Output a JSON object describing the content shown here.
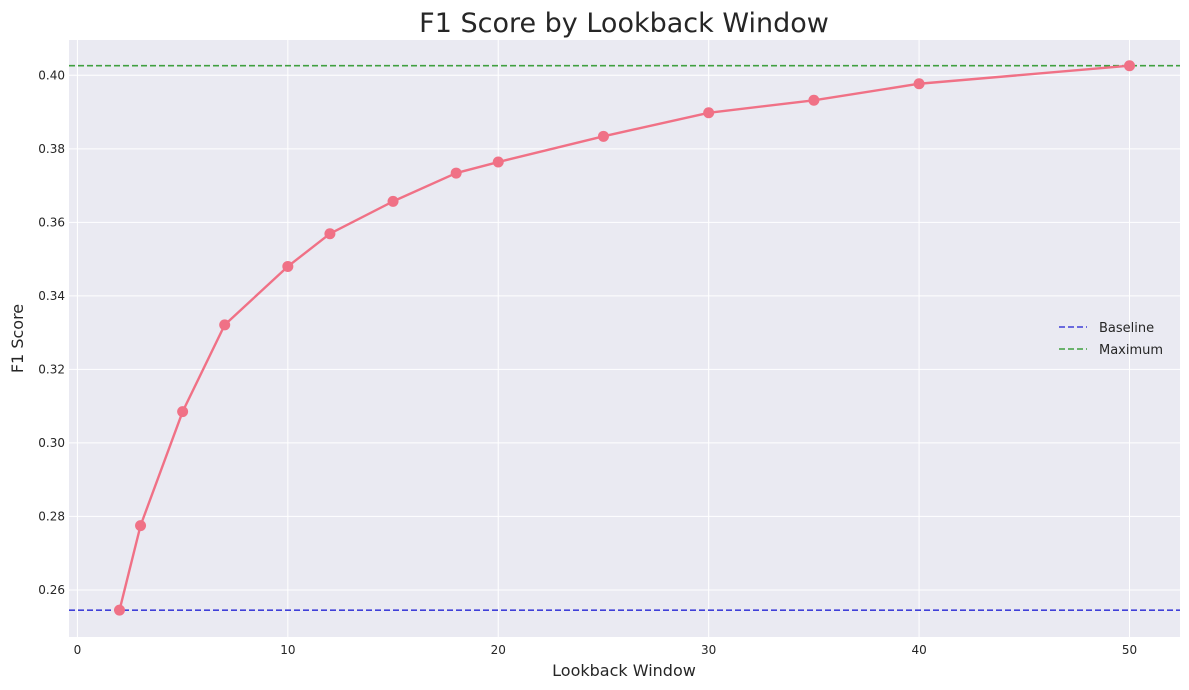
{
  "chart_data": {
    "type": "line",
    "title": "F1 Score by Lookback Window",
    "xlabel": "Lookback Window",
    "ylabel": "F1 Score",
    "xlim": [
      -0.4,
      52.4
    ],
    "ylim": [
      0.2472,
      0.4096
    ],
    "xticks": [
      0,
      10,
      20,
      30,
      40,
      50
    ],
    "yticks": [
      0.26,
      0.28,
      0.3,
      0.32,
      0.34,
      0.36,
      0.38,
      0.4
    ],
    "grid": true,
    "legend_position": "center-right",
    "series": [
      {
        "color": "#f07186",
        "x": [
          2,
          3,
          5,
          7,
          10,
          12,
          15,
          18,
          20,
          25,
          30,
          35,
          40,
          50
        ],
        "y": [
          0.2545,
          0.2775,
          0.3085,
          0.3321,
          0.348,
          0.3569,
          0.3657,
          0.3734,
          0.3764,
          0.3834,
          0.3898,
          0.3932,
          0.3977,
          0.4026
        ]
      }
    ],
    "reference_lines": [
      {
        "name": "Baseline",
        "y": 0.2545,
        "color": "#4040d8",
        "style": "dashed"
      },
      {
        "name": "Maximum",
        "y": 0.4026,
        "color": "#40a040",
        "style": "dashed"
      }
    ]
  }
}
